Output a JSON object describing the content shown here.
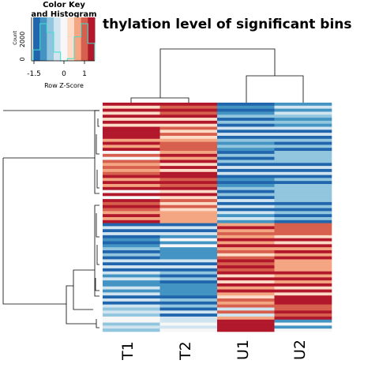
{
  "chart_data": {
    "type": "heatmap",
    "title": "thylation level of significant bins",
    "columns": [
      "T1",
      "T2",
      "U1",
      "U2"
    ],
    "column_groups": [
      {
        "columns": [
          "T1",
          "T2"
        ],
        "pattern": "upper block high (red), lower block low (blue)"
      },
      {
        "columns": [
          "U1",
          "U2"
        ],
        "pattern": "upper block low (blue), lower block high (red)"
      }
    ],
    "color_key": {
      "title_line1": "Color Key",
      "title_line2": "and Histogram",
      "xlabel": "Row Z-Score",
      "ylabel": "Count",
      "x_ticks": [
        "-1.5",
        "0",
        "1"
      ],
      "y_ticks": [
        "0",
        "2000"
      ],
      "palette": [
        "#2166ac",
        "#4393c3",
        "#92c5de",
        "#d1e5f0",
        "#f7f7f7",
        "#fddbc7",
        "#f4a582",
        "#d6604d",
        "#b2182b"
      ],
      "histogram_color": "#40e0d0"
    },
    "bands": [
      {
        "T1": 0.8,
        "T2": 1.2,
        "U1": -1.2,
        "U2": -0.6
      },
      {
        "T1": 1.0,
        "T2": 0.9,
        "U1": -1.1,
        "U2": -0.8
      },
      {
        "T1": 1.3,
        "T2": 0.7,
        "U1": -1.0,
        "U2": -0.7
      },
      {
        "T1": 1.1,
        "T2": 1.0,
        "U1": -0.9,
        "U2": -1.0
      },
      {
        "T1": 0.6,
        "T2": 1.1,
        "U1": -1.1,
        "U2": -0.6
      },
      {
        "T1": 0.9,
        "T2": 0.8,
        "U1": -0.8,
        "U2": -0.9
      },
      {
        "T1": 1.0,
        "T2": 1.2,
        "U1": -1.2,
        "U2": -1.1
      },
      {
        "T1": 0.7,
        "T2": 0.9,
        "U1": -0.9,
        "U2": -0.8
      },
      {
        "T1": 1.1,
        "T2": 0.7,
        "U1": -1.0,
        "U2": -1.2
      },
      {
        "T1": 1.0,
        "T2": 0.6,
        "U1": -0.7,
        "U2": -1.0
      },
      {
        "T1": -1.0,
        "T2": -0.8,
        "U1": 0.9,
        "U2": 1.0
      },
      {
        "T1": -1.2,
        "T2": -0.6,
        "U1": 1.1,
        "U2": 0.8
      },
      {
        "T1": -0.9,
        "T2": -1.0,
        "U1": 0.8,
        "U2": 1.2
      },
      {
        "T1": -1.0,
        "T2": -0.9,
        "U1": 1.2,
        "U2": 0.7
      },
      {
        "T1": -0.7,
        "T2": -1.1,
        "U1": 0.9,
        "U2": 1.1
      },
      {
        "T1": -0.6,
        "T2": -0.9,
        "U1": 1.0,
        "U2": 0.9
      },
      {
        "T1": -0.8,
        "T2": -1.2,
        "U1": 0.7,
        "U2": 1.3
      },
      {
        "T1": -0.5,
        "T2": -0.8,
        "U1": 0.3,
        "U2": 1.5
      },
      {
        "T1": -0.4,
        "T2": -0.2,
        "U1": 1.6,
        "U2": -0.4
      }
    ]
  }
}
